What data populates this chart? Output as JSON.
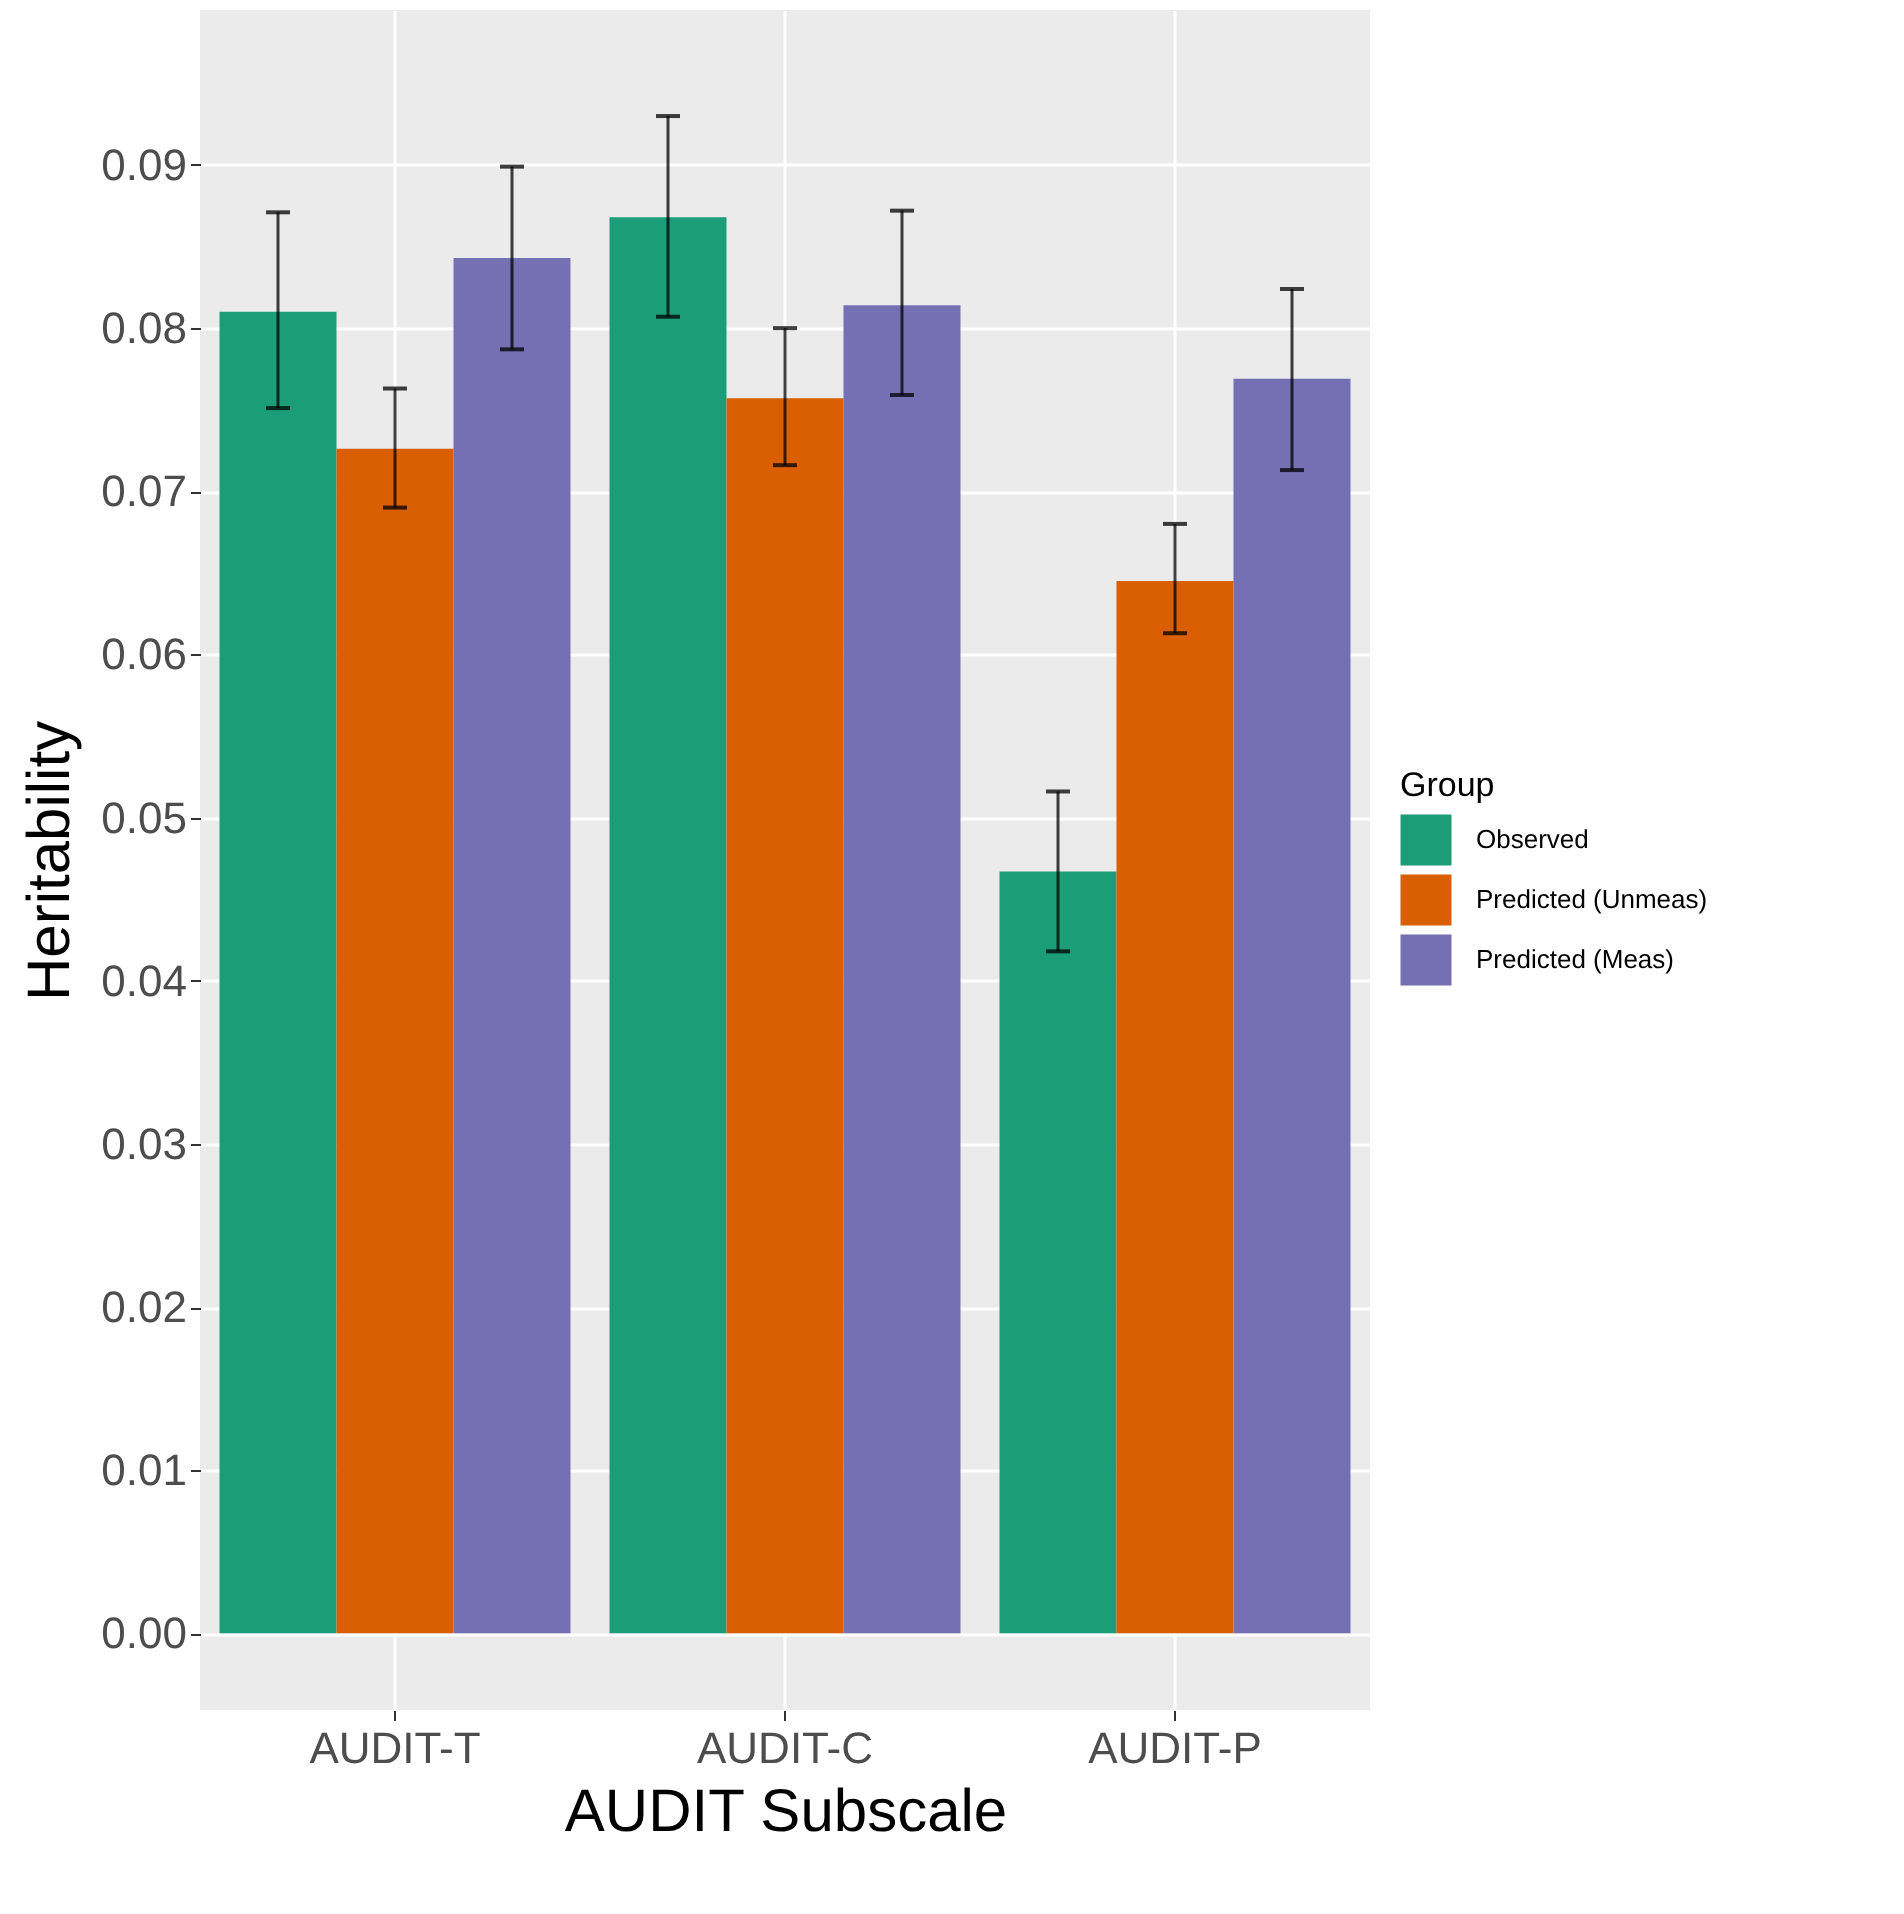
{
  "chart_data": {
    "type": "bar",
    "xlabel": "AUDIT Subscale",
    "ylabel": "Heritability",
    "legend_title": "Group",
    "categories": [
      "AUDIT-T",
      "AUDIT-C",
      "AUDIT-P"
    ],
    "series": [
      {
        "name": "Observed",
        "color": "#1b9e77",
        "values": [
          0.081,
          0.0868,
          0.0467
        ],
        "errors": [
          [
            0.0751,
            0.0871
          ],
          [
            0.0807,
            0.093
          ],
          [
            0.0418,
            0.0516
          ]
        ]
      },
      {
        "name": "Predicted (Unmeas)",
        "color": "#d95f02",
        "values": [
          0.0726,
          0.0757,
          0.0645
        ],
        "errors": [
          [
            0.069,
            0.0763
          ],
          [
            0.0716,
            0.08
          ],
          [
            0.0613,
            0.068
          ]
        ]
      },
      {
        "name": "Predicted (Meas)",
        "color": "#7570b3",
        "values": [
          0.0843,
          0.0814,
          0.0769
        ],
        "errors": [
          [
            0.0787,
            0.0899
          ],
          [
            0.0759,
            0.0872
          ],
          [
            0.0713,
            0.0824
          ]
        ]
      }
    ],
    "ylim": [
      -0.0047,
      0.0995
    ],
    "yticks": [
      {
        "value": 0,
        "label": "0.00"
      },
      0.01,
      0.02,
      0.03,
      0.04,
      0.05,
      0.06,
      0.07,
      0.08,
      0.09
    ],
    "grid": true,
    "legend": "right"
  }
}
